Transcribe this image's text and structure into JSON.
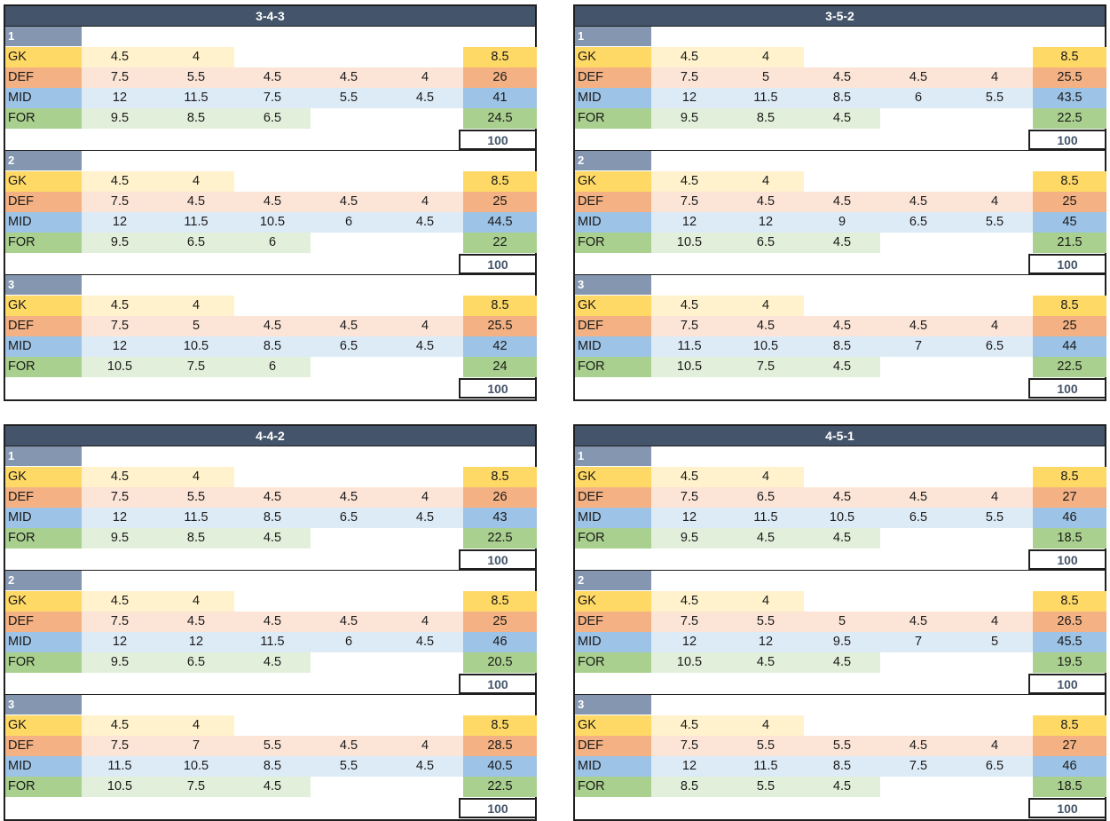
{
  "row_labels": [
    "GK",
    "DEF",
    "MID",
    "FOR"
  ],
  "formations": [
    {
      "title": "3-4-3",
      "options": [
        {
          "number": "1",
          "gk": [
            "4.5",
            "4"
          ],
          "def": [
            "7.5",
            "5.5",
            "4.5",
            "4.5",
            "4"
          ],
          "mid": [
            "12",
            "11.5",
            "7.5",
            "5.5",
            "4.5"
          ],
          "for": [
            "9.5",
            "8.5",
            "6.5"
          ],
          "totals": [
            "8.5",
            "26",
            "41",
            "24.5"
          ],
          "grand": "100"
        },
        {
          "number": "2",
          "gk": [
            "4.5",
            "4"
          ],
          "def": [
            "7.5",
            "4.5",
            "4.5",
            "4.5",
            "4"
          ],
          "mid": [
            "12",
            "11.5",
            "10.5",
            "6",
            "4.5"
          ],
          "for": [
            "9.5",
            "6.5",
            "6"
          ],
          "totals": [
            "8.5",
            "25",
            "44.5",
            "22"
          ],
          "grand": "100"
        },
        {
          "number": "3",
          "gk": [
            "4.5",
            "4"
          ],
          "def": [
            "7.5",
            "5",
            "4.5",
            "4.5",
            "4"
          ],
          "mid": [
            "12",
            "10.5",
            "8.5",
            "6.5",
            "4.5"
          ],
          "for": [
            "10.5",
            "7.5",
            "6"
          ],
          "totals": [
            "8.5",
            "25.5",
            "42",
            "24"
          ],
          "grand": "100"
        }
      ]
    },
    {
      "title": "3-5-2",
      "options": [
        {
          "number": "1",
          "gk": [
            "4.5",
            "4"
          ],
          "def": [
            "7.5",
            "5",
            "4.5",
            "4.5",
            "4"
          ],
          "mid": [
            "12",
            "11.5",
            "8.5",
            "6",
            "5.5"
          ],
          "for": [
            "9.5",
            "8.5",
            "4.5"
          ],
          "totals": [
            "8.5",
            "25.5",
            "43.5",
            "22.5"
          ],
          "grand": "100"
        },
        {
          "number": "2",
          "gk": [
            "4.5",
            "4"
          ],
          "def": [
            "7.5",
            "4.5",
            "4.5",
            "4.5",
            "4"
          ],
          "mid": [
            "12",
            "12",
            "9",
            "6.5",
            "5.5"
          ],
          "for": [
            "10.5",
            "6.5",
            "4.5"
          ],
          "totals": [
            "8.5",
            "25",
            "45",
            "21.5"
          ],
          "grand": "100"
        },
        {
          "number": "3",
          "gk": [
            "4.5",
            "4"
          ],
          "def": [
            "7.5",
            "4.5",
            "4.5",
            "4.5",
            "4"
          ],
          "mid": [
            "11.5",
            "10.5",
            "8.5",
            "7",
            "6.5"
          ],
          "for": [
            "10.5",
            "7.5",
            "4.5"
          ],
          "totals": [
            "8.5",
            "25",
            "44",
            "22.5"
          ],
          "grand": "100"
        }
      ]
    },
    {
      "title": "4-4-2",
      "options": [
        {
          "number": "1",
          "gk": [
            "4.5",
            "4"
          ],
          "def": [
            "7.5",
            "5.5",
            "4.5",
            "4.5",
            "4"
          ],
          "mid": [
            "12",
            "11.5",
            "8.5",
            "6.5",
            "4.5"
          ],
          "for": [
            "9.5",
            "8.5",
            "4.5"
          ],
          "totals": [
            "8.5",
            "26",
            "43",
            "22.5"
          ],
          "grand": "100"
        },
        {
          "number": "2",
          "gk": [
            "4.5",
            "4"
          ],
          "def": [
            "7.5",
            "4.5",
            "4.5",
            "4.5",
            "4"
          ],
          "mid": [
            "12",
            "12",
            "11.5",
            "6",
            "4.5"
          ],
          "for": [
            "9.5",
            "6.5",
            "4.5"
          ],
          "totals": [
            "8.5",
            "25",
            "46",
            "20.5"
          ],
          "grand": "100"
        },
        {
          "number": "3",
          "gk": [
            "4.5",
            "4"
          ],
          "def": [
            "7.5",
            "7",
            "5.5",
            "4.5",
            "4"
          ],
          "mid": [
            "11.5",
            "10.5",
            "8.5",
            "5.5",
            "4.5"
          ],
          "for": [
            "10.5",
            "7.5",
            "4.5"
          ],
          "totals": [
            "8.5",
            "28.5",
            "40.5",
            "22.5"
          ],
          "grand": "100"
        }
      ]
    },
    {
      "title": "4-5-1",
      "options": [
        {
          "number": "1",
          "gk": [
            "4.5",
            "4"
          ],
          "def": [
            "7.5",
            "6.5",
            "4.5",
            "4.5",
            "4"
          ],
          "mid": [
            "12",
            "11.5",
            "10.5",
            "6.5",
            "5.5"
          ],
          "for": [
            "9.5",
            "4.5",
            "4.5"
          ],
          "totals": [
            "8.5",
            "27",
            "46",
            "18.5"
          ],
          "grand": "100"
        },
        {
          "number": "2",
          "gk": [
            "4.5",
            "4"
          ],
          "def": [
            "7.5",
            "5.5",
            "5",
            "4.5",
            "4"
          ],
          "mid": [
            "12",
            "12",
            "9.5",
            "7",
            "5"
          ],
          "for": [
            "10.5",
            "4.5",
            "4.5"
          ],
          "totals": [
            "8.5",
            "26.5",
            "45.5",
            "19.5"
          ],
          "grand": "100"
        },
        {
          "number": "3",
          "gk": [
            "4.5",
            "4"
          ],
          "def": [
            "7.5",
            "5.5",
            "5.5",
            "4.5",
            "4"
          ],
          "mid": [
            "12",
            "11.5",
            "8.5",
            "7.5",
            "6.5"
          ],
          "for": [
            "8.5",
            "5.5",
            "4.5"
          ],
          "totals": [
            "8.5",
            "27",
            "46",
            "18.5"
          ],
          "grand": "100"
        }
      ]
    }
  ],
  "colors": {
    "header": "#44546a",
    "block_number": "#8496b0",
    "gk": "#ffd966",
    "gk_fill": "#fff2cc",
    "def": "#f4b183",
    "def_fill": "#fce4d6",
    "mid": "#9dc3e6",
    "mid_fill": "#ddebf7",
    "for": "#a9d08e",
    "for_fill": "#e2efda"
  }
}
